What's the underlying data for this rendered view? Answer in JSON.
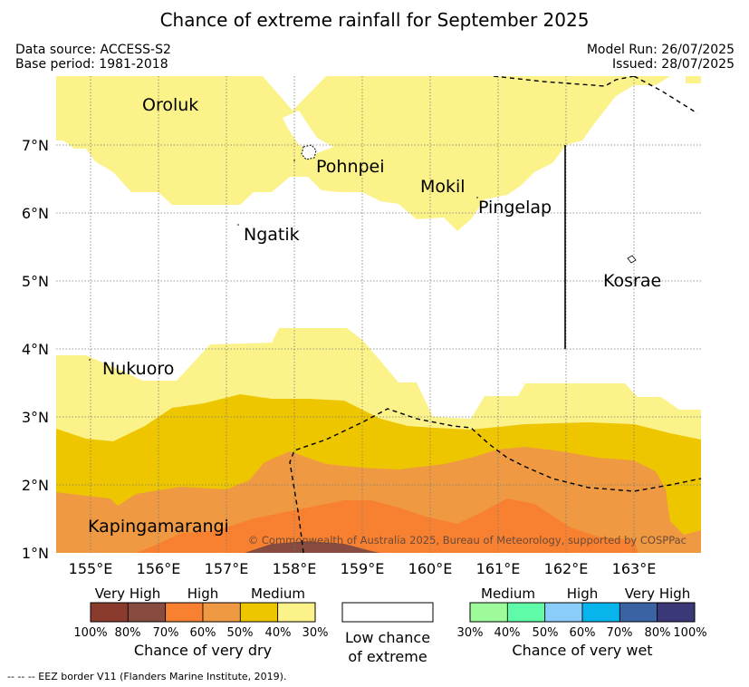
{
  "title": "Chance of extreme rainfall for September 2025",
  "meta": {
    "data_source": "Data source: ACCESS-S2",
    "base_period": "Base period: 1981-2018",
    "model_run": "Model Run: 26/07/2025",
    "issued": "Issued: 28/07/2025"
  },
  "map": {
    "lon_ticks": [
      "155°E",
      "156°E",
      "157°E",
      "158°E",
      "159°E",
      "160°E",
      "161°E",
      "162°E",
      "163°E"
    ],
    "lat_ticks": [
      "7°N",
      "6°N",
      "5°N",
      "4°N",
      "3°N",
      "2°N",
      "1°N"
    ],
    "places": {
      "oroluk": "Oroluk",
      "pohnpei": "Pohnpei",
      "mokil": "Mokil",
      "pingelap": "Pingelap",
      "ngatik": "Ngatik",
      "kosrae": "Kosrae",
      "nukuoro": "Nukuoro",
      "kapingamarangi": "Kapingamarangi"
    },
    "copyright": "© Commonwealth of Australia 2025, Bureau of Meteorology, supported by COSPPac"
  },
  "legend": {
    "dry": {
      "headers": [
        "Very High",
        "High",
        "Medium"
      ],
      "ticks": [
        "100%",
        "80%",
        "70%",
        "60%",
        "50%",
        "40%",
        "30%"
      ],
      "colors": [
        "#8b3a2e",
        "#874c3f",
        "#f78130",
        "#ef9a42",
        "#eec600",
        "#fbf28a"
      ],
      "caption": "Chance of very dry"
    },
    "neutral": {
      "caption_line1": "Low chance",
      "caption_line2": "of extreme"
    },
    "wet": {
      "headers": [
        "Medium",
        "High",
        "Very High"
      ],
      "ticks": [
        "30%",
        "40%",
        "50%",
        "60%",
        "70%",
        "80%",
        "100%"
      ],
      "colors": [
        "#9dfb9a",
        "#5ffba8",
        "#8acdfb",
        "#08b4ec",
        "#3a63a3",
        "#3b3878"
      ],
      "caption": "Chance of very wet"
    }
  },
  "footer": "--  --  -- EEZ border V11 (Flanders Marine Institute, 2019)."
}
